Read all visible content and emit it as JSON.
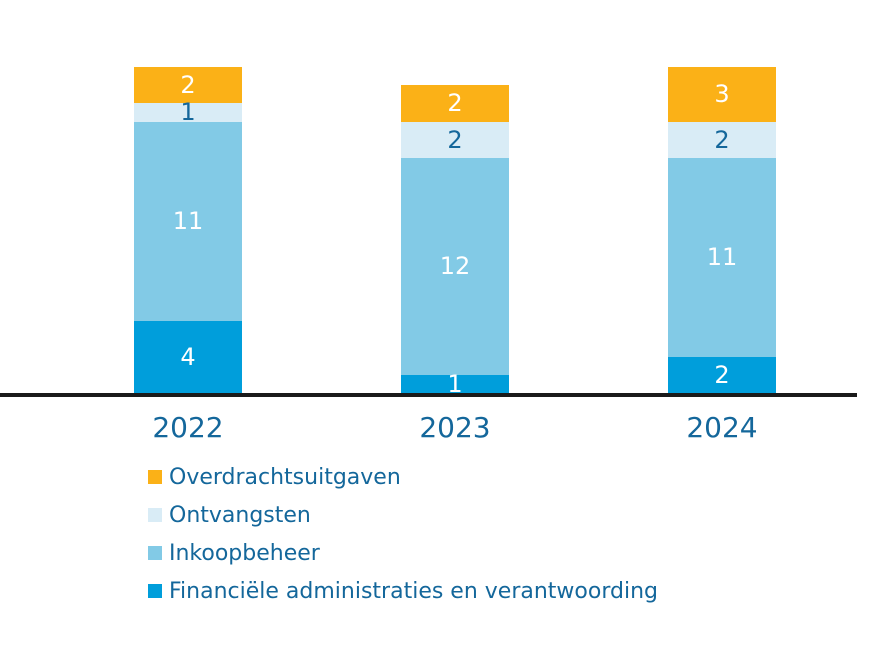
{
  "chart_data": {
    "type": "bar",
    "stacked": true,
    "categories": [
      "2022",
      "2023",
      "2024"
    ],
    "series": [
      {
        "name": "Financiële administraties en verantwoording",
        "color": "#009EDB",
        "label_color": "#FFFFFF",
        "values": [
          4,
          1,
          2
        ]
      },
      {
        "name": "Inkoopbeheer",
        "color": "#82CAE6",
        "label_color": "#FFFFFF",
        "values": [
          11,
          12,
          11
        ]
      },
      {
        "name": "Ontvangsten",
        "color": "#D9ECF6",
        "label_color": "#14679B",
        "values": [
          1,
          2,
          2
        ]
      },
      {
        "name": "Overdrachtsuitgaven",
        "color": "#FBB117",
        "label_color": "#FFFFFF",
        "values": [
          2,
          2,
          3
        ]
      }
    ],
    "legend_order_top_to_bottom": [
      "Overdrachtsuitgaven",
      "Ontvangsten",
      "Inkoopbeheer",
      "Financiële administraties en verantwoording"
    ],
    "value_labels_shown": true,
    "ylim": [
      0,
      18
    ],
    "layout": {
      "grid": false,
      "y_axis_visible": false,
      "x_axis_line_color": "#1A1A1A",
      "legend_position": "bottom-left",
      "background": "#FFFFFF",
      "text_color": "#14679B"
    }
  }
}
